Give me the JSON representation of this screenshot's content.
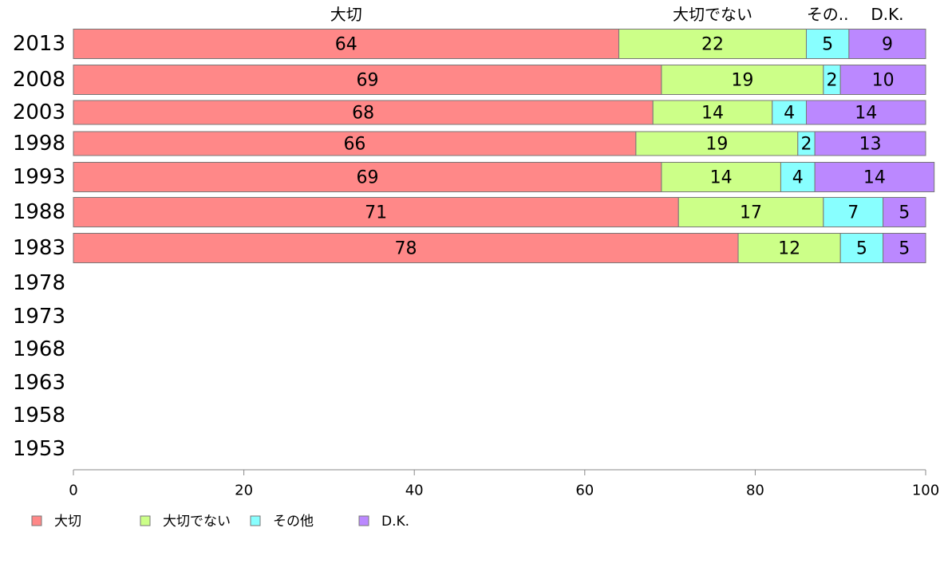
{
  "chart_data": {
    "type": "bar",
    "orientation": "horizontal",
    "stacked": true,
    "categories": [
      "2013",
      "2008",
      "2003",
      "1998",
      "1993",
      "1988",
      "1983",
      "1978",
      "1973",
      "1968",
      "1963",
      "1958",
      "1953"
    ],
    "series": [
      {
        "name": "大切",
        "short_label": "大切",
        "color": "#ff8888",
        "values": [
          64,
          69,
          68,
          66,
          69,
          71,
          78,
          null,
          null,
          null,
          null,
          null,
          null
        ]
      },
      {
        "name": "大切でない",
        "short_label": "大切でない",
        "color": "#ccff88",
        "values": [
          22,
          19,
          14,
          19,
          14,
          17,
          12,
          null,
          null,
          null,
          null,
          null,
          null
        ]
      },
      {
        "name": "その他",
        "short_label": "その..",
        "color": "#88ffff",
        "values": [
          5,
          2,
          4,
          2,
          4,
          7,
          5,
          null,
          null,
          null,
          null,
          null,
          null
        ]
      },
      {
        "name": "D.K.",
        "short_label": "D.K.",
        "color": "#bb88ff",
        "values": [
          9,
          10,
          14,
          13,
          14,
          5,
          5,
          null,
          null,
          null,
          null,
          null,
          null
        ]
      }
    ],
    "xlim": [
      0,
      100
    ],
    "xticks": [
      0,
      20,
      40,
      60,
      80,
      100
    ],
    "xlabel": "",
    "ylabel": "",
    "grid": false,
    "legend": "bottom-left"
  }
}
